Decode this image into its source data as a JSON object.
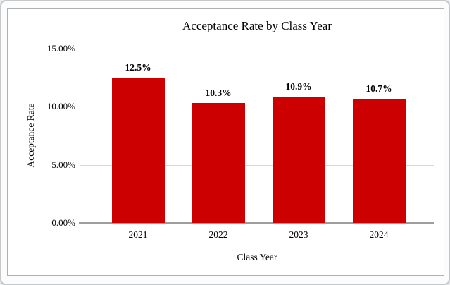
{
  "chart_data": {
    "type": "bar",
    "title": "Acceptance Rate by Class Year",
    "xlabel": "Class Year",
    "ylabel": "Acceptance Rate",
    "categories": [
      "2021",
      "2022",
      "2023",
      "2024"
    ],
    "values": [
      12.5,
      10.3,
      10.9,
      10.7
    ],
    "bar_labels": [
      "12.5%",
      "10.3%",
      "10.9%",
      "10.7%"
    ],
    "ylim": [
      0,
      15
    ],
    "yticks": [
      {
        "value": 15,
        "label": "15.00%"
      },
      {
        "value": 10,
        "label": "10.00%"
      },
      {
        "value": 5,
        "label": "5.00%"
      },
      {
        "value": 0,
        "label": "0.00%"
      }
    ],
    "grid": true,
    "legend": "none",
    "bar_color": "#cc0000",
    "gridline_color": "#d9d9d9",
    "axis_line_color": "#9e9e9e",
    "title_color": "#000000"
  }
}
